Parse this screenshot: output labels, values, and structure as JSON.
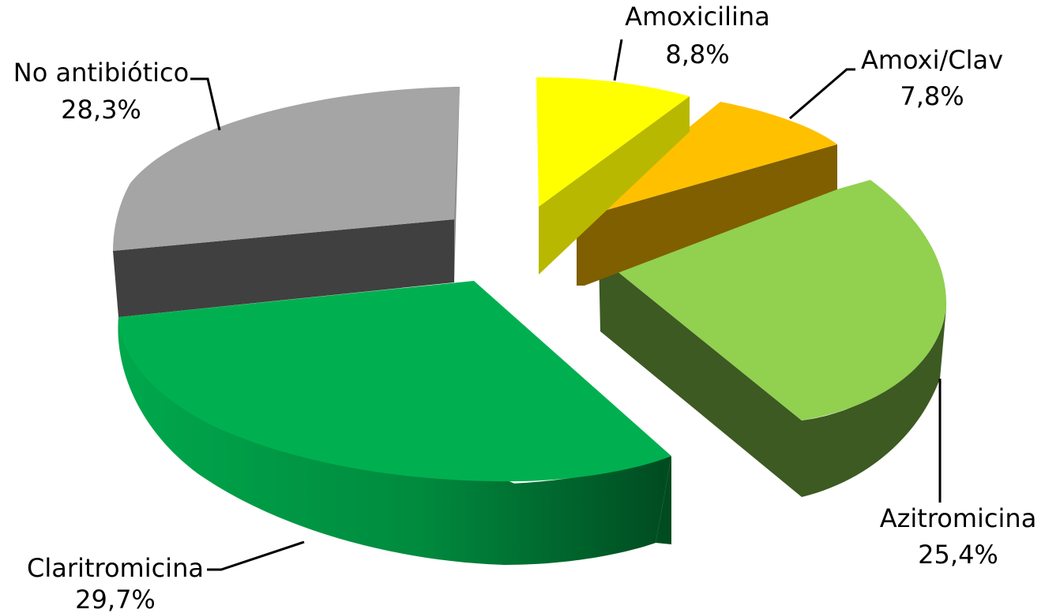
{
  "chart_data": {
    "type": "pie",
    "title": "",
    "style": "3d-exploded",
    "slices": [
      {
        "name": "Amoxicilina",
        "label": "Amoxicilina",
        "pct_label": "8,8%",
        "value": 8.8,
        "color": "#FFFF00",
        "side_color": "#B8B800"
      },
      {
        "name": "Amoxi/Clav",
        "label": "Amoxi/Clav",
        "pct_label": "7,8%",
        "value": 7.8,
        "color": "#FFC000",
        "side_color": "#7F5F00"
      },
      {
        "name": "Azitromicina",
        "label": "Azitromicina",
        "pct_label": "25,4%",
        "value": 25.4,
        "color": "#92D050",
        "side_color": "#3C5A22"
      },
      {
        "name": "Claritromicina",
        "label": "Claritromicina",
        "pct_label": "29,7%",
        "value": 29.7,
        "color": "#00B050",
        "side_color": "#00843C"
      },
      {
        "name": "No antibiótico",
        "label": "No antibiótico",
        "pct_label": "28,3%",
        "value": 28.3,
        "color": "#A5A5A5",
        "side_color": "#404040"
      }
    ]
  }
}
